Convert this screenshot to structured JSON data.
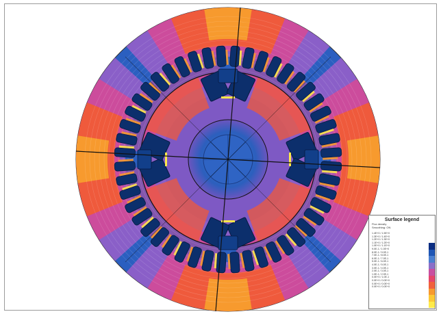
{
  "legend": {
    "title": "Surface legend",
    "subtitle": "Flux density",
    "header": "Smoothing: ON",
    "rows": [
      "1.4E+0 / 1.5E+0",
      "1.3E+0 / 1.4E+0",
      "1.2E+0 / 1.3E+0",
      "1.1E+0 / 1.2E+0",
      "1.0E+0 / 1.1E+0",
      "9.0E-1 / 1.0E+0",
      "8.0E-1 / 9.0E-1",
      "7.0E-1 / 8.0E-1",
      "6.0E-1 / 7.0E-1",
      "5.0E-1 / 6.0E-1",
      "4.0E-1 / 5.0E-1",
      "3.0E-1 / 4.0E-1",
      "2.0E-1 / 3.0E-1",
      "1.0E-1 / 2.0E-1",
      "0.0E+0 / 1.0E-1",
      "0.0E+0 / 0.0E+0",
      "0.0E+0 / 0.0E+0",
      "0.0E+0 / 0.0E+0"
    ],
    "colors": [
      "#0b2d82",
      "#1f56b5",
      "#4a7fd0",
      "#8a6fc8",
      "#c84fa0",
      "#e5456a",
      "#f0613c",
      "#f79a2e",
      "#fcc834",
      "#ffea4a"
    ]
  },
  "colors": {
    "background_blue": "#2b5fc0",
    "deep_blue": "#0c2f6c",
    "purple": "#8a5fc8",
    "magenta": "#cc4c9c",
    "orange_red": "#ef5a3c",
    "orange": "#f79a2e",
    "yellow": "#ffe84a",
    "outline": "#111111"
  }
}
